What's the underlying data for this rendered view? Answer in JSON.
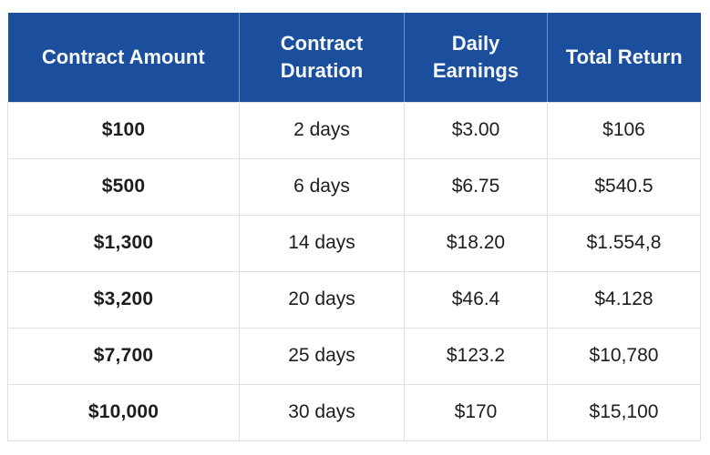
{
  "colors": {
    "header_background": "#1b4e9c",
    "header_text": "#ffffff",
    "header_divider": "rgba(255,255,255,0.38)",
    "row_background": "#ffffff",
    "row_border": "#dce1e8",
    "body_text": "#1d1d1f"
  },
  "chart_data": {
    "type": "table",
    "title": "",
    "columns": [
      "Contract Amount",
      "Contract Duration",
      "Daily Earnings",
      "Total Return"
    ],
    "rows": [
      [
        "$100",
        "2 days",
        "$3.00",
        "$106"
      ],
      [
        "$500",
        "6 days",
        "$6.75",
        "$540.5"
      ],
      [
        "$1,300",
        "14 days",
        "$18.20",
        "$1.554,8"
      ],
      [
        "$3,200",
        "20 days",
        "$46.4",
        "$4.128"
      ],
      [
        "$7,700",
        "25 days",
        "$123.2",
        "$10,780"
      ],
      [
        "$10,000",
        "30 days",
        "$170",
        "$15,100"
      ]
    ],
    "layout": {
      "header_style": "solid-blue",
      "grid": true,
      "first_column_bold": true,
      "alignment": "center"
    }
  }
}
